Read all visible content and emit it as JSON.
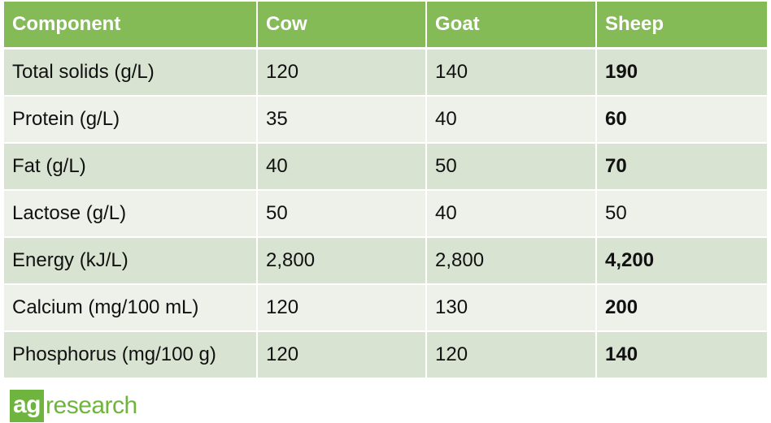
{
  "table": {
    "headers": [
      "Component",
      "Cow",
      "Goat",
      "Sheep"
    ],
    "rows": [
      [
        "Total solids (g/L)",
        "120",
        "140",
        "190"
      ],
      [
        "Protein (g/L)",
        "35",
        "40",
        "60"
      ],
      [
        "Fat (g/L)",
        "40",
        "50",
        "70"
      ],
      [
        "Lactose (g/L)",
        "50",
        "40",
        "50"
      ],
      [
        "Energy (kJ/L)",
        "2,800",
        "2,800",
        "4,200"
      ],
      [
        "Calcium (mg/100 mL)",
        "120",
        "130",
        "200"
      ],
      [
        "Phosphorus (mg/100 g)",
        "120",
        "120",
        "140"
      ]
    ],
    "bold_sheep_rows": [
      0,
      1,
      2,
      4,
      5,
      6
    ]
  },
  "logo": {
    "box_text": "ag",
    "rest_text": "research"
  },
  "colors": {
    "header_bg": "#84bb57",
    "row_odd_bg": "#d9e3d1",
    "row_even_bg": "#edf1ea",
    "logo_green": "#6fb43f"
  }
}
